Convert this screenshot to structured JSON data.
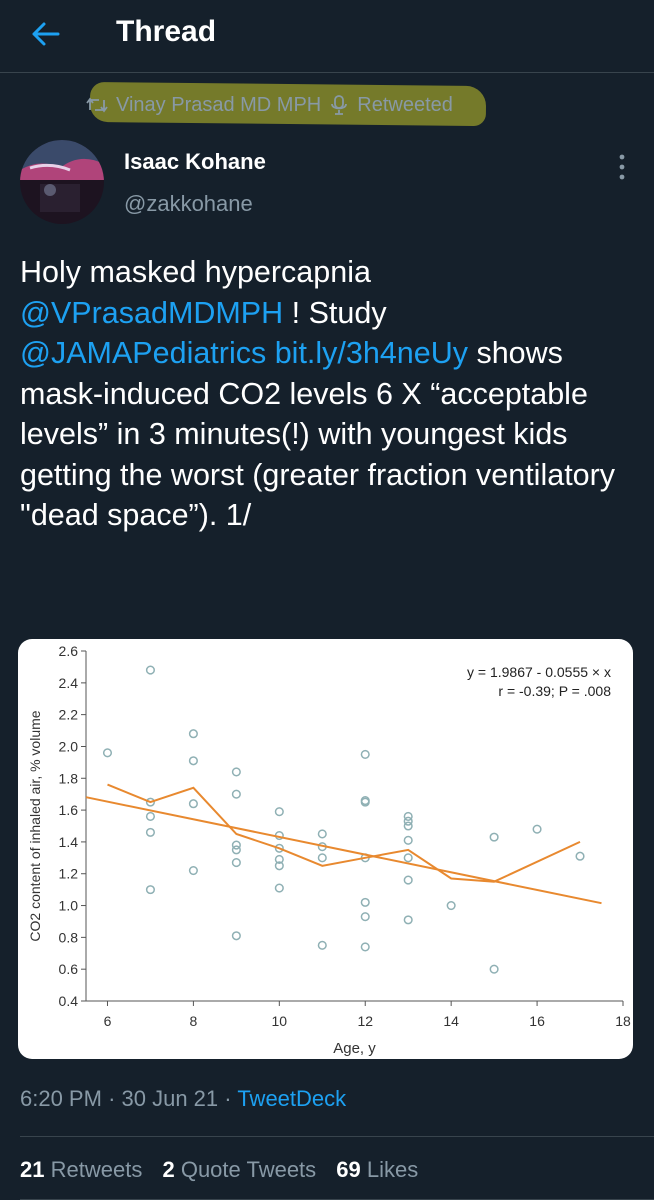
{
  "header": {
    "title": "Thread",
    "back_icon": "arrow-left-icon"
  },
  "retweet": {
    "text": "Vinay Prasad MD MPH",
    "suffix": "Retweeted",
    "icon": "retweet-icon",
    "badge_icon": "podcast-mic-icon"
  },
  "tweet": {
    "author_name": "Isaac Kohane",
    "author_handle": "@zakkohane",
    "text_parts": {
      "p1": "Holy masked hypercapnia ",
      "m1": "@VPrasadMDMPH",
      "p2": " ! Study ",
      "m2": "@JAMAPediatrics",
      "p3": " ",
      "link": "bit.ly/3h4neUy",
      "p4": " shows mask-induced CO2 levels 6 X “acceptable levels” in 3 minutes(!) with youngest kids getting the worst (greater fraction ventilatory \"dead space”). 1/"
    },
    "time": "6:20 PM",
    "date": "30 Jun 21",
    "source": "TweetDeck",
    "stats": {
      "retweets_count": "21",
      "retweets_label": "Retweets",
      "quotes_count": "2",
      "quotes_label": "Quote Tweets",
      "likes_count": "69",
      "likes_label": "Likes"
    }
  },
  "colors": {
    "background": "#15202b",
    "accent": "#1da1f2",
    "muted": "#8899a6",
    "line": "#e8892f",
    "point": "#8fb0b4"
  },
  "chart_data": {
    "type": "scatter",
    "title": "",
    "xlabel": "Age, y",
    "ylabel": "CO2 content of inhaled air, % volume",
    "xlim": [
      5.5,
      18
    ],
    "ylim": [
      0.4,
      2.6
    ],
    "xticks": [
      6,
      8,
      10,
      12,
      14,
      16,
      18
    ],
    "yticks": [
      0.4,
      0.6,
      0.8,
      1.0,
      1.2,
      1.4,
      1.6,
      1.8,
      2.0,
      2.2,
      2.4,
      2.6
    ],
    "annotation": [
      "y = 1.9867 - 0.0555 × x",
      "r = -0.39; P = .008"
    ],
    "points": [
      [
        6,
        1.96
      ],
      [
        7,
        2.48
      ],
      [
        7,
        1.65
      ],
      [
        7,
        1.56
      ],
      [
        7,
        1.46
      ],
      [
        7,
        1.1
      ],
      [
        8,
        2.08
      ],
      [
        8,
        1.91
      ],
      [
        8,
        1.64
      ],
      [
        8,
        1.22
      ],
      [
        9,
        1.84
      ],
      [
        9,
        1.7
      ],
      [
        9,
        1.38
      ],
      [
        9,
        1.35
      ],
      [
        9,
        1.27
      ],
      [
        9,
        0.81
      ],
      [
        10,
        1.59
      ],
      [
        10,
        1.44
      ],
      [
        10,
        1.36
      ],
      [
        10,
        1.29
      ],
      [
        10,
        1.25
      ],
      [
        10,
        1.11
      ],
      [
        11,
        1.45
      ],
      [
        11,
        1.37
      ],
      [
        11,
        1.3
      ],
      [
        11,
        0.75
      ],
      [
        12,
        1.95
      ],
      [
        12,
        1.66
      ],
      [
        12,
        1.65
      ],
      [
        12,
        1.3
      ],
      [
        12,
        1.02
      ],
      [
        12,
        0.93
      ],
      [
        12,
        0.74
      ],
      [
        13,
        1.56
      ],
      [
        13,
        1.53
      ],
      [
        13,
        1.5
      ],
      [
        13,
        1.41
      ],
      [
        13,
        1.3
      ],
      [
        13,
        1.16
      ],
      [
        13,
        0.91
      ],
      [
        14,
        1.0
      ],
      [
        15,
        1.43
      ],
      [
        15,
        0.6
      ],
      [
        16,
        1.48
      ],
      [
        17,
        1.31
      ]
    ],
    "series": [
      {
        "type": "line",
        "values": [
          [
            6,
            1.76
          ],
          [
            7,
            1.65
          ],
          [
            8,
            1.74
          ],
          [
            9,
            1.45
          ],
          [
            10,
            1.36
          ],
          [
            11,
            1.25
          ],
          [
            12,
            1.3
          ],
          [
            13,
            1.35
          ],
          [
            14,
            1.17
          ],
          [
            15,
            1.15
          ],
          [
            17,
            1.4
          ]
        ]
      },
      {
        "type": "regression",
        "values": [
          [
            5.5,
            1.681
          ],
          [
            17.5,
            1.015
          ]
        ]
      }
    ]
  }
}
